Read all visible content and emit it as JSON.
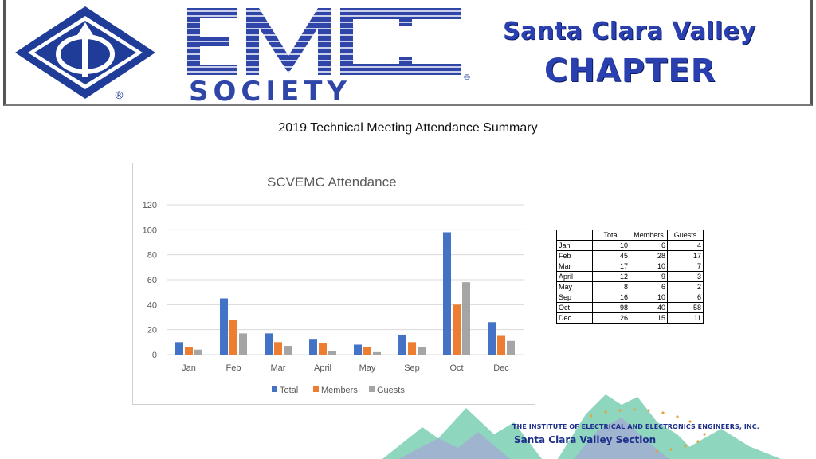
{
  "banner": {
    "logo_line1": "EMC",
    "logo_line2": "SOCIETY",
    "registered_mark": "®",
    "chapter_line1": "Santa Clara Valley",
    "chapter_line2": "CHAPTER"
  },
  "page_title": "2019 Technical Meeting Attendance Summary",
  "chart_data": {
    "type": "bar",
    "title": "SCVEMC Attendance",
    "xlabel": "",
    "ylabel": "",
    "categories": [
      "Jan",
      "Feb",
      "Mar",
      "April",
      "May",
      "Sep",
      "Oct",
      "Dec"
    ],
    "series": [
      {
        "name": "Total",
        "values": [
          10,
          45,
          17,
          12,
          8,
          16,
          98,
          26
        ],
        "color": "#4472c4"
      },
      {
        "name": "Members",
        "values": [
          6,
          28,
          10,
          9,
          6,
          10,
          40,
          15
        ],
        "color": "#ed7d31"
      },
      {
        "name": "Guests",
        "values": [
          4,
          17,
          7,
          3,
          2,
          6,
          58,
          11
        ],
        "color": "#a5a5a5"
      }
    ],
    "ylim": [
      0,
      120
    ],
    "yticks": [
      0,
      20,
      40,
      60,
      80,
      100,
      120
    ],
    "grid": true,
    "legend_position": "bottom"
  },
  "table": {
    "headers": [
      "",
      "Total",
      "Members",
      "Guests"
    ],
    "rows": [
      [
        "Jan",
        "10",
        "6",
        "4"
      ],
      [
        "Feb",
        "45",
        "28",
        "17"
      ],
      [
        "Mar",
        "17",
        "10",
        "7"
      ],
      [
        "April",
        "12",
        "9",
        "3"
      ],
      [
        "May",
        "8",
        "6",
        "2"
      ],
      [
        "Sep",
        "16",
        "10",
        "6"
      ],
      [
        "Oct",
        "98",
        "40",
        "58"
      ],
      [
        "Dec",
        "26",
        "15",
        "11"
      ]
    ]
  },
  "footer": {
    "ieee_line1": "THE INSTITUTE OF ELECTRICAL AND ELECTRONICS ENGINEERS, INC.",
    "ieee_line2": "Santa Clara Valley Section"
  }
}
